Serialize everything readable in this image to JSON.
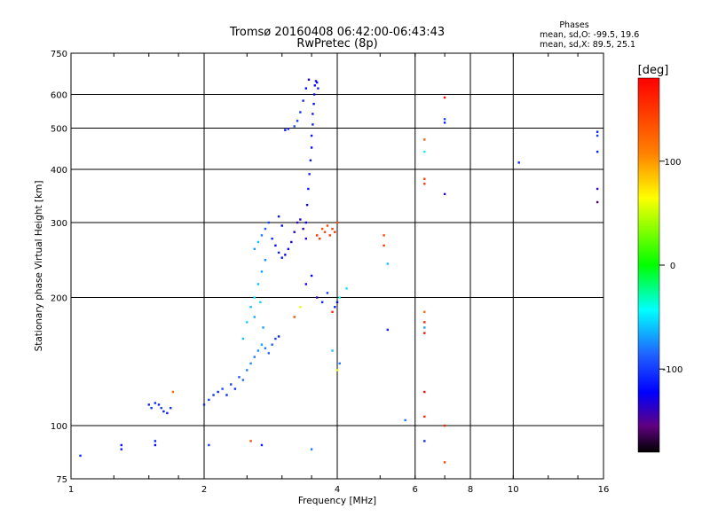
{
  "chart_data": {
    "type": "scatter",
    "title": "Tromsø 20160408 06:42:00-06:43:43",
    "subtitle": "RwPretec (8p)",
    "xlabel": "Frequency [MHz]",
    "ylabel": "Stationary phase Virtual Height [km]",
    "x_scale": "log2",
    "y_scale": "log",
    "xlim": [
      1,
      16
    ],
    "ylim": [
      75,
      750
    ],
    "x_ticks": [
      {
        "value": 1,
        "label": "1"
      },
      {
        "value": 2,
        "label": "2"
      },
      {
        "value": 4,
        "label": "4"
      },
      {
        "value": 6,
        "label": "6"
      },
      {
        "value": 8,
        "label": "8"
      },
      {
        "value": 10,
        "label": "10"
      },
      {
        "value": 16,
        "label": "16"
      }
    ],
    "y_ticks": [
      {
        "value": 75,
        "label": "75"
      },
      {
        "value": 100,
        "label": "100"
      },
      {
        "value": 200,
        "label": "200"
      },
      {
        "value": 300,
        "label": "300"
      },
      {
        "value": 400,
        "label": "400"
      },
      {
        "value": 500,
        "label": "500"
      },
      {
        "value": 600,
        "label": "600"
      },
      {
        "value": 750,
        "label": "750"
      }
    ],
    "grid": true,
    "stats": {
      "heading": "Phases",
      "line_o": "mean, sd,O: -99.5, 19.6",
      "line_x": "mean, sd,X:  89.5, 25.1"
    },
    "colorbar": {
      "label": "[deg]",
      "min": -180,
      "max": 180,
      "ticks": [
        {
          "value": 100,
          "label": "100"
        },
        {
          "value": 0,
          "label": "0"
        },
        {
          "value": -100,
          "label": "-100"
        }
      ]
    },
    "points": [
      [
        1.3,
        88,
        -110
      ],
      [
        1.3,
        90,
        -115
      ],
      [
        1.5,
        112,
        -110
      ],
      [
        1.52,
        110,
        -105
      ],
      [
        1.55,
        113,
        -108
      ],
      [
        1.58,
        112,
        -112
      ],
      [
        1.6,
        110,
        -100
      ],
      [
        1.62,
        108,
        -110
      ],
      [
        1.65,
        107,
        -115
      ],
      [
        1.68,
        110,
        -105
      ],
      [
        1.7,
        120,
        120
      ],
      [
        1.55,
        92,
        -110
      ],
      [
        1.55,
        90,
        -120
      ],
      [
        2.0,
        112,
        -110
      ],
      [
        2.05,
        115,
        -100
      ],
      [
        2.1,
        118,
        -105
      ],
      [
        2.15,
        120,
        -110
      ],
      [
        2.2,
        122,
        -95
      ],
      [
        2.25,
        118,
        -110
      ],
      [
        2.3,
        125,
        -100
      ],
      [
        2.35,
        122,
        -105
      ],
      [
        2.4,
        130,
        -90
      ],
      [
        2.45,
        128,
        -85
      ],
      [
        2.5,
        135,
        -80
      ],
      [
        2.55,
        140,
        -75
      ],
      [
        2.6,
        145,
        -80
      ],
      [
        2.65,
        150,
        -75
      ],
      [
        2.7,
        155,
        -70
      ],
      [
        2.75,
        152,
        -80
      ],
      [
        2.8,
        148,
        -85
      ],
      [
        2.85,
        155,
        -90
      ],
      [
        2.9,
        160,
        -100
      ],
      [
        2.95,
        162,
        -110
      ],
      [
        2.45,
        160,
        -60
      ],
      [
        2.5,
        175,
        -55
      ],
      [
        2.55,
        190,
        -60
      ],
      [
        2.6,
        200,
        -50
      ],
      [
        2.65,
        215,
        -60
      ],
      [
        2.7,
        230,
        -70
      ],
      [
        2.75,
        245,
        -75
      ],
      [
        2.6,
        180,
        -65
      ],
      [
        2.68,
        195,
        -55
      ],
      [
        2.72,
        170,
        -70
      ],
      [
        2.6,
        260,
        -70
      ],
      [
        2.65,
        270,
        -60
      ],
      [
        2.7,
        280,
        -80
      ],
      [
        2.75,
        290,
        -90
      ],
      [
        2.8,
        300,
        -100
      ],
      [
        2.85,
        275,
        -110
      ],
      [
        2.9,
        265,
        -120
      ],
      [
        2.95,
        255,
        -110
      ],
      [
        3.0,
        248,
        -115
      ],
      [
        3.05,
        252,
        -120
      ],
      [
        3.1,
        260,
        -125
      ],
      [
        3.15,
        270,
        -130
      ],
      [
        3.2,
        285,
        -135
      ],
      [
        3.25,
        300,
        -140
      ],
      [
        3.3,
        305,
        -130
      ],
      [
        3.35,
        290,
        -140
      ],
      [
        3.4,
        275,
        -135
      ],
      [
        3.0,
        295,
        -120
      ],
      [
        2.95,
        310,
        -115
      ],
      [
        3.4,
        300,
        -125
      ],
      [
        3.42,
        330,
        -120
      ],
      [
        3.44,
        360,
        -115
      ],
      [
        3.46,
        390,
        -110
      ],
      [
        3.48,
        420,
        -115
      ],
      [
        3.5,
        450,
        -120
      ],
      [
        3.5,
        480,
        -115
      ],
      [
        3.52,
        510,
        -110
      ],
      [
        3.52,
        540,
        -115
      ],
      [
        3.54,
        570,
        -120
      ],
      [
        3.55,
        600,
        -125
      ],
      [
        3.56,
        630,
        -130
      ],
      [
        3.58,
        645,
        -120
      ],
      [
        3.6,
        640,
        -115
      ],
      [
        3.62,
        620,
        -110
      ],
      [
        3.45,
        650,
        -130
      ],
      [
        3.4,
        620,
        -120
      ],
      [
        3.35,
        580,
        -110
      ],
      [
        3.3,
        545,
        -105
      ],
      [
        3.25,
        520,
        -100
      ],
      [
        3.2,
        505,
        -95
      ],
      [
        3.1,
        498,
        -110
      ],
      [
        3.05,
        495,
        -120
      ],
      [
        3.6,
        280,
        150
      ],
      [
        3.65,
        275,
        150
      ],
      [
        3.7,
        290,
        140
      ],
      [
        3.75,
        285,
        145
      ],
      [
        3.8,
        295,
        140
      ],
      [
        3.85,
        280,
        150
      ],
      [
        3.9,
        290,
        145
      ],
      [
        3.95,
        285,
        150
      ],
      [
        4.0,
        300,
        140
      ],
      [
        3.4,
        215,
        -130
      ],
      [
        3.5,
        225,
        -120
      ],
      [
        3.6,
        200,
        -140
      ],
      [
        3.7,
        195,
        -110
      ],
      [
        3.8,
        205,
        -100
      ],
      [
        3.9,
        185,
        160
      ],
      [
        3.95,
        190,
        -110
      ],
      [
        4.0,
        195,
        -120
      ],
      [
        4.05,
        200,
        -40
      ],
      [
        4.2,
        210,
        -50
      ],
      [
        3.3,
        190,
        60
      ],
      [
        3.9,
        150,
        -60
      ],
      [
        4.05,
        140,
        -80
      ],
      [
        4.0,
        135,
        60
      ],
      [
        3.2,
        180,
        140
      ],
      [
        5.1,
        280,
        140
      ],
      [
        5.1,
        265,
        150
      ],
      [
        5.2,
        240,
        -60
      ],
      [
        5.2,
        168,
        -110
      ],
      [
        5.7,
        103,
        -80
      ],
      [
        6.3,
        470,
        130
      ],
      [
        6.3,
        440,
        -40
      ],
      [
        6.3,
        380,
        140
      ],
      [
        6.3,
        370,
        150
      ],
      [
        6.3,
        185,
        120
      ],
      [
        6.3,
        175,
        160
      ],
      [
        6.3,
        170,
        -70
      ],
      [
        6.3,
        165,
        170
      ],
      [
        6.3,
        120,
        175
      ],
      [
        6.3,
        105,
        160
      ],
      [
        6.3,
        92,
        -110
      ],
      [
        7.0,
        590,
        175
      ],
      [
        7.0,
        525,
        -100
      ],
      [
        7.0,
        515,
        -110
      ],
      [
        7.0,
        350,
        -140
      ],
      [
        7.0,
        100,
        160
      ],
      [
        7.0,
        82,
        140
      ],
      [
        10.3,
        415,
        -110
      ],
      [
        15.5,
        490,
        -110
      ],
      [
        15.5,
        480,
        -100
      ],
      [
        15.5,
        440,
        -110
      ],
      [
        15.5,
        360,
        -140
      ],
      [
        15.5,
        335,
        -160
      ],
      [
        1.05,
        85,
        -110
      ],
      [
        2.05,
        90,
        -100
      ],
      [
        2.55,
        92,
        140
      ],
      [
        2.7,
        90,
        -110
      ],
      [
        3.5,
        88,
        -80
      ]
    ]
  }
}
